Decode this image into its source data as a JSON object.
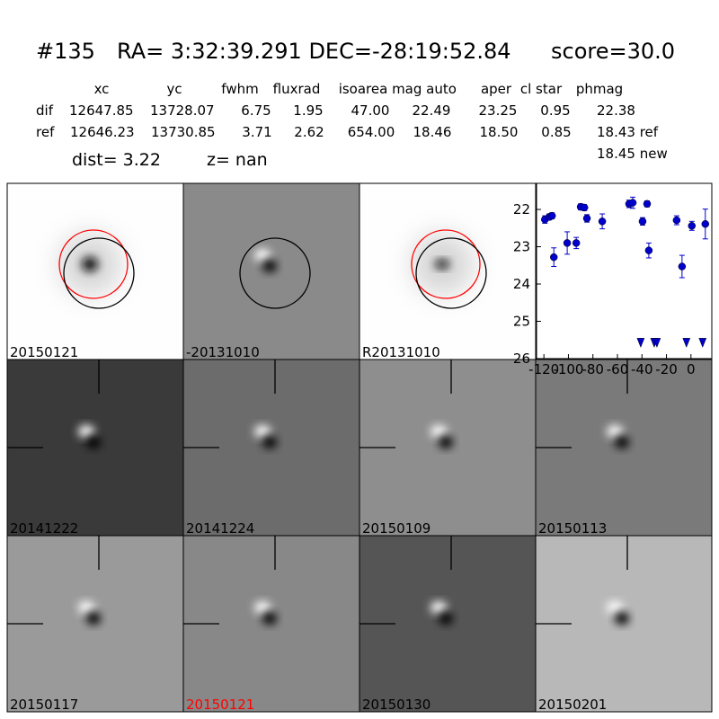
{
  "header": {
    "id": "#135",
    "coords": "RA= 3:32:39.291 DEC=-28:19:52.84",
    "score": "score=30.0"
  },
  "table": {
    "columns": [
      "xc",
      "yc",
      "fwhm",
      "fluxrad",
      "isoarea",
      "mag auto",
      "aper",
      "cl star",
      "phmag"
    ],
    "rows": [
      [
        "dif",
        "12647.85",
        "13728.07",
        "6.75",
        "1.95",
        "47.00",
        "22.49",
        "23.25",
        "0.95",
        "22.38"
      ],
      [
        "ref",
        "12646.23",
        "13730.85",
        "3.71",
        "2.62",
        "654.00",
        "18.46",
        "18.50",
        "0.85",
        "18.43 ref"
      ]
    ],
    "extra": "18.45 new"
  },
  "dist": "dist=  3.22",
  "z": "z=   nan",
  "panels": [
    "20150121",
    "-20131010",
    "R20131010",
    "20141222",
    "20141224",
    "20150109",
    "20150113",
    "20150117",
    "20150121",
    "20150130",
    "20150201"
  ],
  "chart_data": {
    "type": "scatter",
    "color": "#0000cc",
    "x": [
      -119.2,
      -115.6,
      -113.4,
      -111.9,
      -101,
      -93.6,
      -90,
      -87,
      -84.9,
      -72.4,
      -50.5,
      -47.5,
      -39.5,
      -35.8,
      -34.4,
      -11.7,
      -7.3,
      0.7,
      11.7
    ],
    "values": [
      22.27,
      22.2,
      22.17,
      23.28,
      22.9,
      22.9,
      21.93,
      21.95,
      22.24,
      22.32,
      21.85,
      21.82,
      22.32,
      21.85,
      23.1,
      22.29,
      23.53,
      22.44,
      22.39
    ],
    "errors": [
      0.1,
      0.08,
      0.08,
      0.25,
      0.3,
      0.15,
      0.08,
      0.08,
      0.1,
      0.2,
      0.1,
      0.15,
      0.1,
      0.08,
      0.2,
      0.12,
      0.3,
      0.12,
      0.4
    ],
    "limits_x": [
      -41,
      -30,
      -27.8,
      -3.7,
      9.5
    ],
    "limits_values": [
      25.55,
      25.55,
      25.55,
      25.55,
      25.55
    ],
    "xlim": [
      -126,
      17
    ],
    "ylim": [
      26,
      21.3
    ],
    "xticks": [
      -120,
      -100,
      -80,
      -60,
      -40,
      -20,
      0
    ],
    "yticks": [
      22,
      23,
      24,
      25,
      26
    ]
  }
}
